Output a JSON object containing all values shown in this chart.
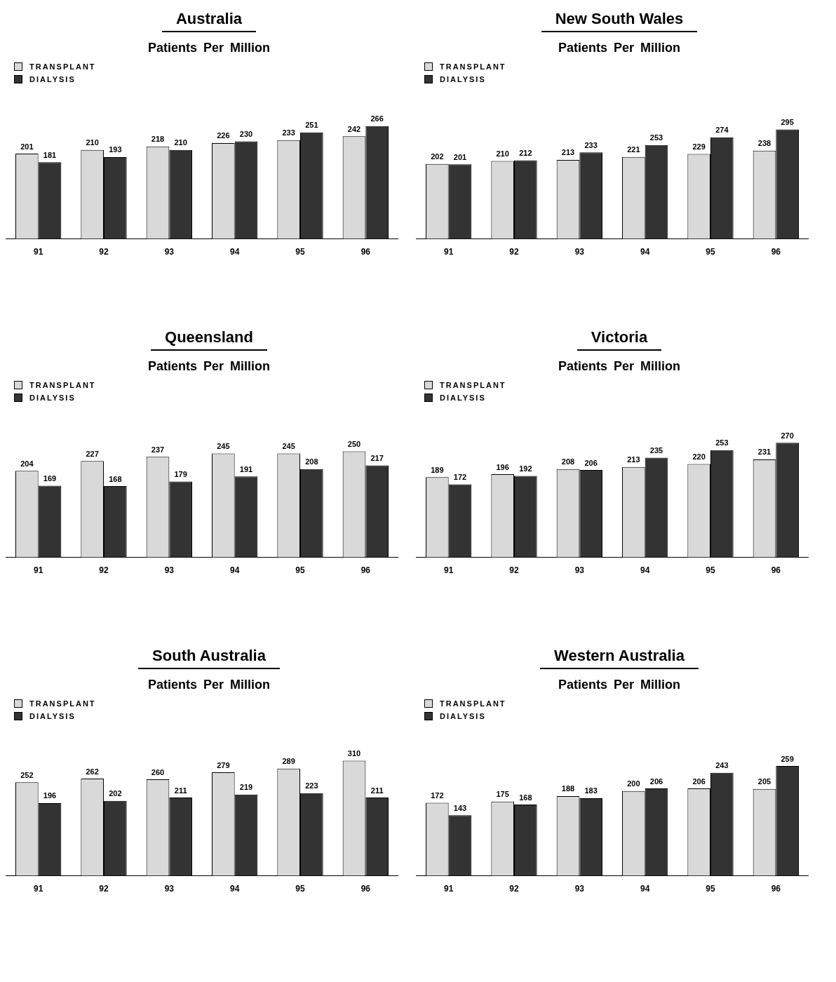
{
  "chart_data": [
    {
      "type": "bar",
      "title": "Australia",
      "subtitle": "Patients Per Million",
      "categories": [
        "91",
        "92",
        "93",
        "94",
        "95",
        "96"
      ],
      "series": [
        {
          "name": "TRANSPLANT",
          "color": "#d9d9d9",
          "values": [
            201,
            210,
            218,
            226,
            233,
            242
          ]
        },
        {
          "name": "DIALYSIS",
          "color": "#333333",
          "values": [
            181,
            193,
            210,
            230,
            251,
            266
          ]
        }
      ],
      "data_labels": true,
      "legend": "top left",
      "grid": false
    },
    {
      "type": "bar",
      "title": "New South Wales",
      "subtitle": "Patients Per Million",
      "categories": [
        "91",
        "92",
        "93",
        "94",
        "95",
        "96"
      ],
      "series": [
        {
          "name": "TRANSPLANT",
          "color": "#d9d9d9",
          "values": [
            202,
            210,
            213,
            221,
            229,
            238
          ]
        },
        {
          "name": "DIALYSIS",
          "color": "#333333",
          "values": [
            201,
            212,
            233,
            253,
            274,
            295
          ]
        }
      ],
      "data_labels": true,
      "legend": "top left",
      "grid": false
    },
    {
      "type": "bar",
      "title": "Queensland",
      "subtitle": "Patients Per Million",
      "categories": [
        "91",
        "92",
        "93",
        "94",
        "95",
        "96"
      ],
      "series": [
        {
          "name": "TRANSPLANT",
          "color": "#d9d9d9",
          "values": [
            204,
            227,
            237,
            245,
            245,
            250
          ]
        },
        {
          "name": "DIALYSIS",
          "color": "#333333",
          "values": [
            169,
            168,
            179,
            191,
            208,
            217
          ]
        }
      ],
      "data_labels": true,
      "legend": "top left",
      "grid": false
    },
    {
      "type": "bar",
      "title": "Victoria",
      "subtitle": "Patients Per Million",
      "categories": [
        "91",
        "92",
        "93",
        "94",
        "95",
        "96"
      ],
      "series": [
        {
          "name": "TRANSPLANT",
          "color": "#d9d9d9",
          "values": [
            189,
            196,
            208,
            213,
            220,
            231
          ]
        },
        {
          "name": "DIALYSIS",
          "color": "#333333",
          "values": [
            172,
            192,
            206,
            235,
            253,
            270
          ]
        }
      ],
      "data_labels": true,
      "legend": "top left",
      "grid": false
    },
    {
      "type": "bar",
      "title": "South Australia",
      "subtitle": "Patients Per Million",
      "categories": [
        "91",
        "92",
        "93",
        "94",
        "95",
        "96"
      ],
      "series": [
        {
          "name": "TRANSPLANT",
          "color": "#d9d9d9",
          "values": [
            252,
            262,
            260,
            279,
            289,
            310
          ]
        },
        {
          "name": "DIALYSIS",
          "color": "#333333",
          "values": [
            196,
            202,
            211,
            219,
            223,
            211
          ]
        }
      ],
      "data_labels": true,
      "legend": "top left",
      "grid": false
    },
    {
      "type": "bar",
      "title": "Western Australia",
      "subtitle": "Patients Per Million",
      "categories": [
        "91",
        "92",
        "93",
        "94",
        "95",
        "96"
      ],
      "series": [
        {
          "name": "TRANSPLANT",
          "color": "#d9d9d9",
          "values": [
            172,
            175,
            188,
            200,
            206,
            205
          ]
        },
        {
          "name": "DIALYSIS",
          "color": "#333333",
          "values": [
            143,
            168,
            183,
            206,
            243,
            259
          ]
        }
      ],
      "data_labels": true,
      "legend": "top left",
      "grid": false
    }
  ]
}
